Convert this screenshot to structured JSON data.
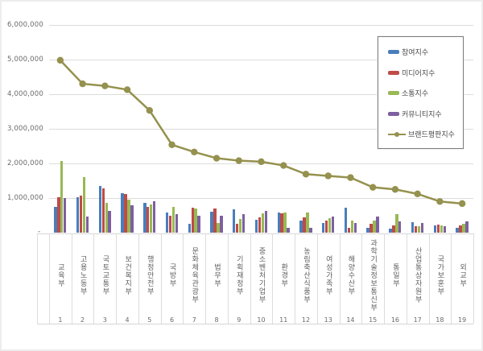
{
  "chart_data": {
    "type": "bar",
    "subtype": "grouped-bars-with-line-overlay",
    "title": "",
    "xlabel": "",
    "ylabel": "",
    "grid": true,
    "legend_position": "upper-right",
    "ylim": [
      0,
      6000000
    ],
    "categories": [
      "교육부",
      "고용노동부",
      "국토교통부",
      "보건복지부",
      "행정안전부",
      "국방부",
      "문화체육관광부",
      "법무부",
      "기획재정부",
      "중소벤처기업부",
      "환경부",
      "농림축산식품부",
      "여성가족부",
      "해양수산부",
      "과학기술정보통신부",
      "통일부",
      "산업통상자원부",
      "국가보훈부",
      "외교부"
    ],
    "category_numbers": [
      "1",
      "2",
      "3",
      "4",
      "5",
      "6",
      "7",
      "8",
      "9",
      "10",
      "11",
      "12",
      "13",
      "14",
      "15",
      "16",
      "17",
      "18",
      "19"
    ],
    "series": [
      {
        "name": "참여지수",
        "type": "bar",
        "color": "#4a7ebb",
        "values": [
          750000,
          1030000,
          1350000,
          1150000,
          860000,
          580000,
          250000,
          610000,
          670000,
          380000,
          590000,
          360000,
          270000,
          730000,
          150000,
          110000,
          310000,
          200000,
          150000
        ]
      },
      {
        "name": "미디어지수",
        "type": "bar",
        "color": "#be4b48",
        "values": [
          1030000,
          1060000,
          1270000,
          1120000,
          750000,
          500000,
          710000,
          690000,
          250000,
          440000,
          550000,
          450000,
          340000,
          150000,
          250000,
          210000,
          180000,
          240000,
          210000
        ]
      },
      {
        "name": "소통지수",
        "type": "bar",
        "color": "#98b954",
        "values": [
          2060000,
          1610000,
          860000,
          950000,
          820000,
          750000,
          690000,
          270000,
          400000,
          550000,
          590000,
          590000,
          420000,
          350000,
          340000,
          540000,
          180000,
          220000,
          250000
        ]
      },
      {
        "name": "커뮤니티지수",
        "type": "bar",
        "color": "#7d60a0",
        "values": [
          1010000,
          460000,
          630000,
          780000,
          900000,
          530000,
          480000,
          480000,
          530000,
          630000,
          130000,
          150000,
          460000,
          270000,
          460000,
          320000,
          280000,
          190000,
          330000
        ]
      },
      {
        "name": "브랜드평판지수",
        "type": "line",
        "color": "#95914e",
        "values": [
          4980000,
          4300000,
          4240000,
          4130000,
          3530000,
          2540000,
          2330000,
          2150000,
          2080000,
          2050000,
          1940000,
          1690000,
          1640000,
          1590000,
          1310000,
          1250000,
          1120000,
          900000,
          840000
        ]
      }
    ],
    "y_axis": {
      "ticks": [
        {
          "label": "6,000,000",
          "value": 6000000
        },
        {
          "label": "5,000,000",
          "value": 5000000
        },
        {
          "label": "4,000,000",
          "value": 4000000
        },
        {
          "label": "3,000,000",
          "value": 3000000
        },
        {
          "label": "2,000,000",
          "value": 2000000
        },
        {
          "label": "1,000,000",
          "value": 1000000
        }
      ],
      "zero_label": "-"
    }
  },
  "colors": {
    "background": "#ffffff",
    "gridline": "#dcdcdc",
    "text": "#5f5f5f",
    "legend_border": "#7d7d7d"
  }
}
